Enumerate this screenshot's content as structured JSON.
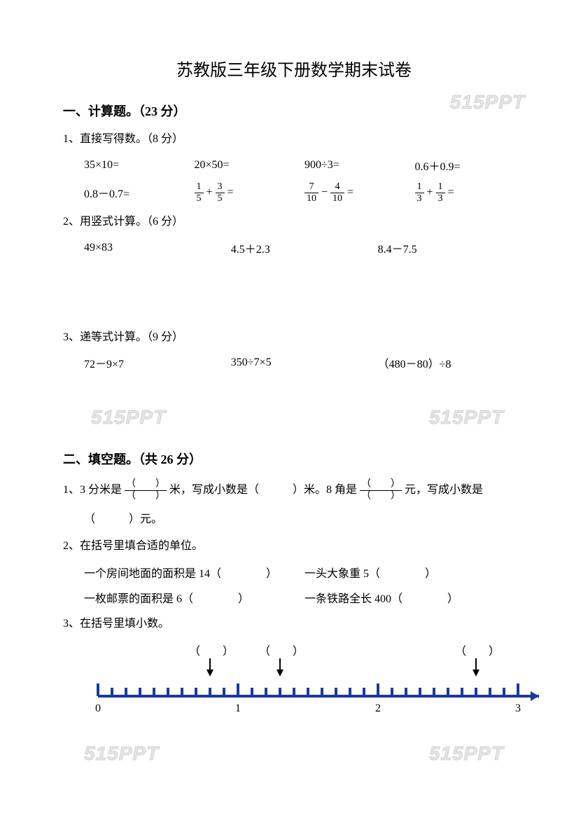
{
  "title": "苏教版三年级下册数学期末试卷",
  "watermark_text": "515PPT",
  "section1": {
    "header": "一、计算题。（23 分）",
    "q1": {
      "label": "1、直接写得数。（8 分）",
      "row1": [
        "35×10=",
        "20×50=",
        "900÷3=",
        "0.6＋0.9="
      ],
      "row2_a": "0.8－0.7=",
      "row2_b": {
        "n1": "1",
        "d1": "5",
        "op": "+",
        "n2": "3",
        "d2": "5"
      },
      "row2_c": {
        "n1": "7",
        "d1": "10",
        "op": "−",
        "n2": "4",
        "d2": "10"
      },
      "row2_d": {
        "n1": "1",
        "d1": "3",
        "op": "+",
        "n2": "1",
        "d2": "3"
      }
    },
    "q2": {
      "label": "2、用竖式计算。（6 分）",
      "items": [
        "49×83",
        "4.5＋2.3",
        "8.4－7.5"
      ]
    },
    "q3": {
      "label": "3、递等式计算。（9 分）",
      "items": [
        "72－9×7",
        "350÷7×5",
        "（480－80）÷8"
      ]
    }
  },
  "section2": {
    "header": "二、填空题。（共 26 分）",
    "q1": {
      "pre": "1、3 分米是",
      "mid1": "米，写成小数是（　　　）米。8 角是",
      "mid2": "元，写成小数是",
      "line2": "（　　　）元。",
      "paren_num": "（　　）",
      "paren_den": "（　　）"
    },
    "q2": {
      "label": "2、在括号里填合适的单位。",
      "r1a": "一个房间地面的面积是 14（　　　　）",
      "r1b": "一头大象重 5（　　　　）",
      "r2a": "一枚邮票的面积是 6（　　　　）",
      "r2b": "一条铁路全长 400（　　　　）"
    },
    "q3": {
      "label": "3、在括号里填小数。",
      "arrow_label": "（　　）"
    }
  },
  "numberline": {
    "color": "#1a3a9e",
    "labels": [
      "0",
      "1",
      "2",
      "3"
    ],
    "total_width": 600,
    "major_ticks": 4,
    "minor_per_major": 10,
    "arrows_at": [
      0.8,
      1.3,
      2.7
    ]
  }
}
